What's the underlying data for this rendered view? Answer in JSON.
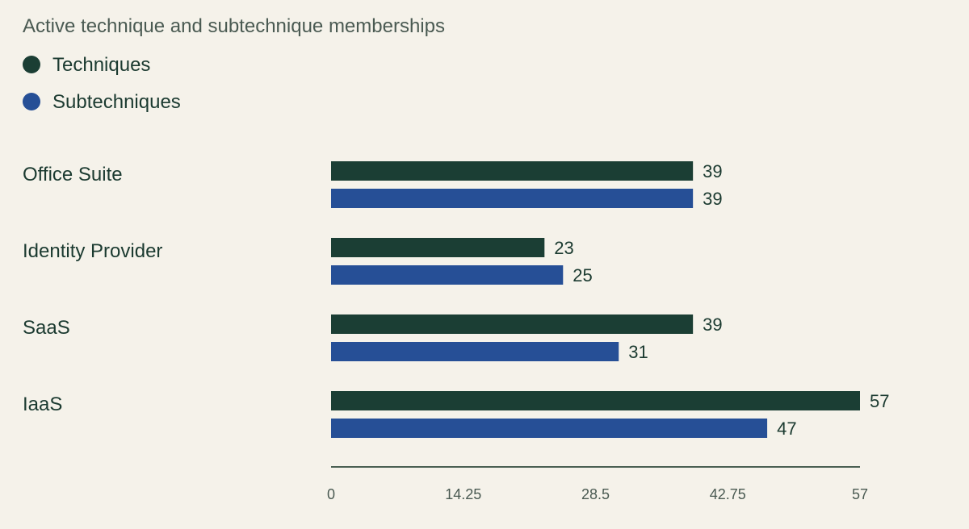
{
  "chart_data": {
    "type": "bar",
    "orientation": "horizontal",
    "title": "Active technique and subtechnique memberships",
    "categories": [
      "Office Suite",
      "Identity Provider",
      "SaaS",
      "IaaS"
    ],
    "series": [
      {
        "name": "Techniques",
        "color": "#1b3e34",
        "values": [
          39,
          23,
          39,
          57
        ]
      },
      {
        "name": "Subtechniques",
        "color": "#264f96",
        "values": [
          39,
          25,
          31,
          47
        ]
      }
    ],
    "xlim": [
      0,
      57
    ],
    "xticks": [
      "0",
      "14.25",
      "28.5",
      "42.75",
      "57"
    ],
    "axis_color": "#4a5f52",
    "grid": false,
    "legend_position": "top-left"
  }
}
